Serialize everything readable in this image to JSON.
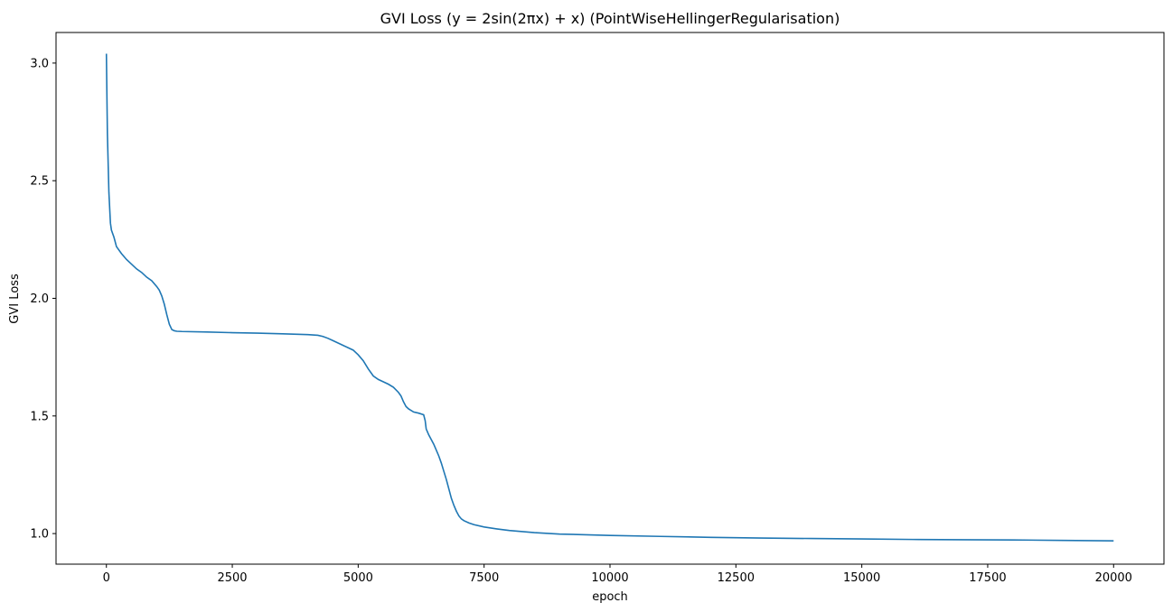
{
  "chart_data": {
    "type": "line",
    "title": "GVI Loss (y = 2sin(2πx) + x) (PointWiseHellingerRegularisation)",
    "xlabel": "epoch",
    "ylabel": "GVI Loss",
    "xlim": [
      -1000,
      21000
    ],
    "ylim": [
      0.87,
      3.13
    ],
    "x_ticks": [
      0,
      2500,
      5000,
      7500,
      10000,
      12500,
      15000,
      17500,
      20000
    ],
    "y_ticks": [
      1.0,
      1.5,
      2.0,
      2.5,
      3.0
    ],
    "grid": false,
    "colors": {
      "line": "#1f77b4",
      "axes": "#000000"
    },
    "series": [
      {
        "x": [
          0,
          20,
          50,
          80,
          100,
          150,
          200,
          300,
          400,
          500,
          600,
          700,
          800,
          900,
          1000,
          1050,
          1100,
          1150,
          1200,
          1250,
          1300,
          1350,
          1400,
          1500,
          2000,
          2500,
          3000,
          3500,
          4000,
          4200,
          4300,
          4400,
          4500,
          4700,
          4900,
          5000,
          5100,
          5200,
          5300,
          5400,
          5500,
          5600,
          5700,
          5800,
          5850,
          5900,
          5950,
          6000,
          6100,
          6200,
          6300,
          6330,
          6350,
          6400,
          6450,
          6500,
          6550,
          6600,
          6650,
          6700,
          6750,
          6800,
          6850,
          6900,
          6950,
          7000,
          7050,
          7100,
          7200,
          7300,
          7500,
          7750,
          8000,
          8500,
          9000,
          10000,
          11000,
          12000,
          13000,
          14000,
          15000,
          16000,
          17000,
          18000,
          19000,
          20000
        ],
        "y": [
          3.04,
          2.7,
          2.45,
          2.32,
          2.29,
          2.26,
          2.22,
          2.19,
          2.165,
          2.145,
          2.125,
          2.11,
          2.09,
          2.075,
          2.05,
          2.035,
          2.01,
          1.975,
          1.93,
          1.89,
          1.867,
          1.862,
          1.86,
          1.859,
          1.857,
          1.854,
          1.852,
          1.849,
          1.846,
          1.843,
          1.838,
          1.83,
          1.82,
          1.8,
          1.78,
          1.76,
          1.735,
          1.7,
          1.67,
          1.655,
          1.645,
          1.635,
          1.622,
          1.6,
          1.585,
          1.56,
          1.54,
          1.53,
          1.517,
          1.512,
          1.505,
          1.48,
          1.445,
          1.42,
          1.4,
          1.38,
          1.355,
          1.33,
          1.3,
          1.265,
          1.23,
          1.19,
          1.15,
          1.12,
          1.095,
          1.075,
          1.062,
          1.055,
          1.045,
          1.038,
          1.028,
          1.02,
          1.013,
          1.004,
          0.998,
          0.992,
          0.988,
          0.984,
          0.981,
          0.979,
          0.977,
          0.975,
          0.974,
          0.973,
          0.971,
          0.969
        ]
      }
    ]
  }
}
